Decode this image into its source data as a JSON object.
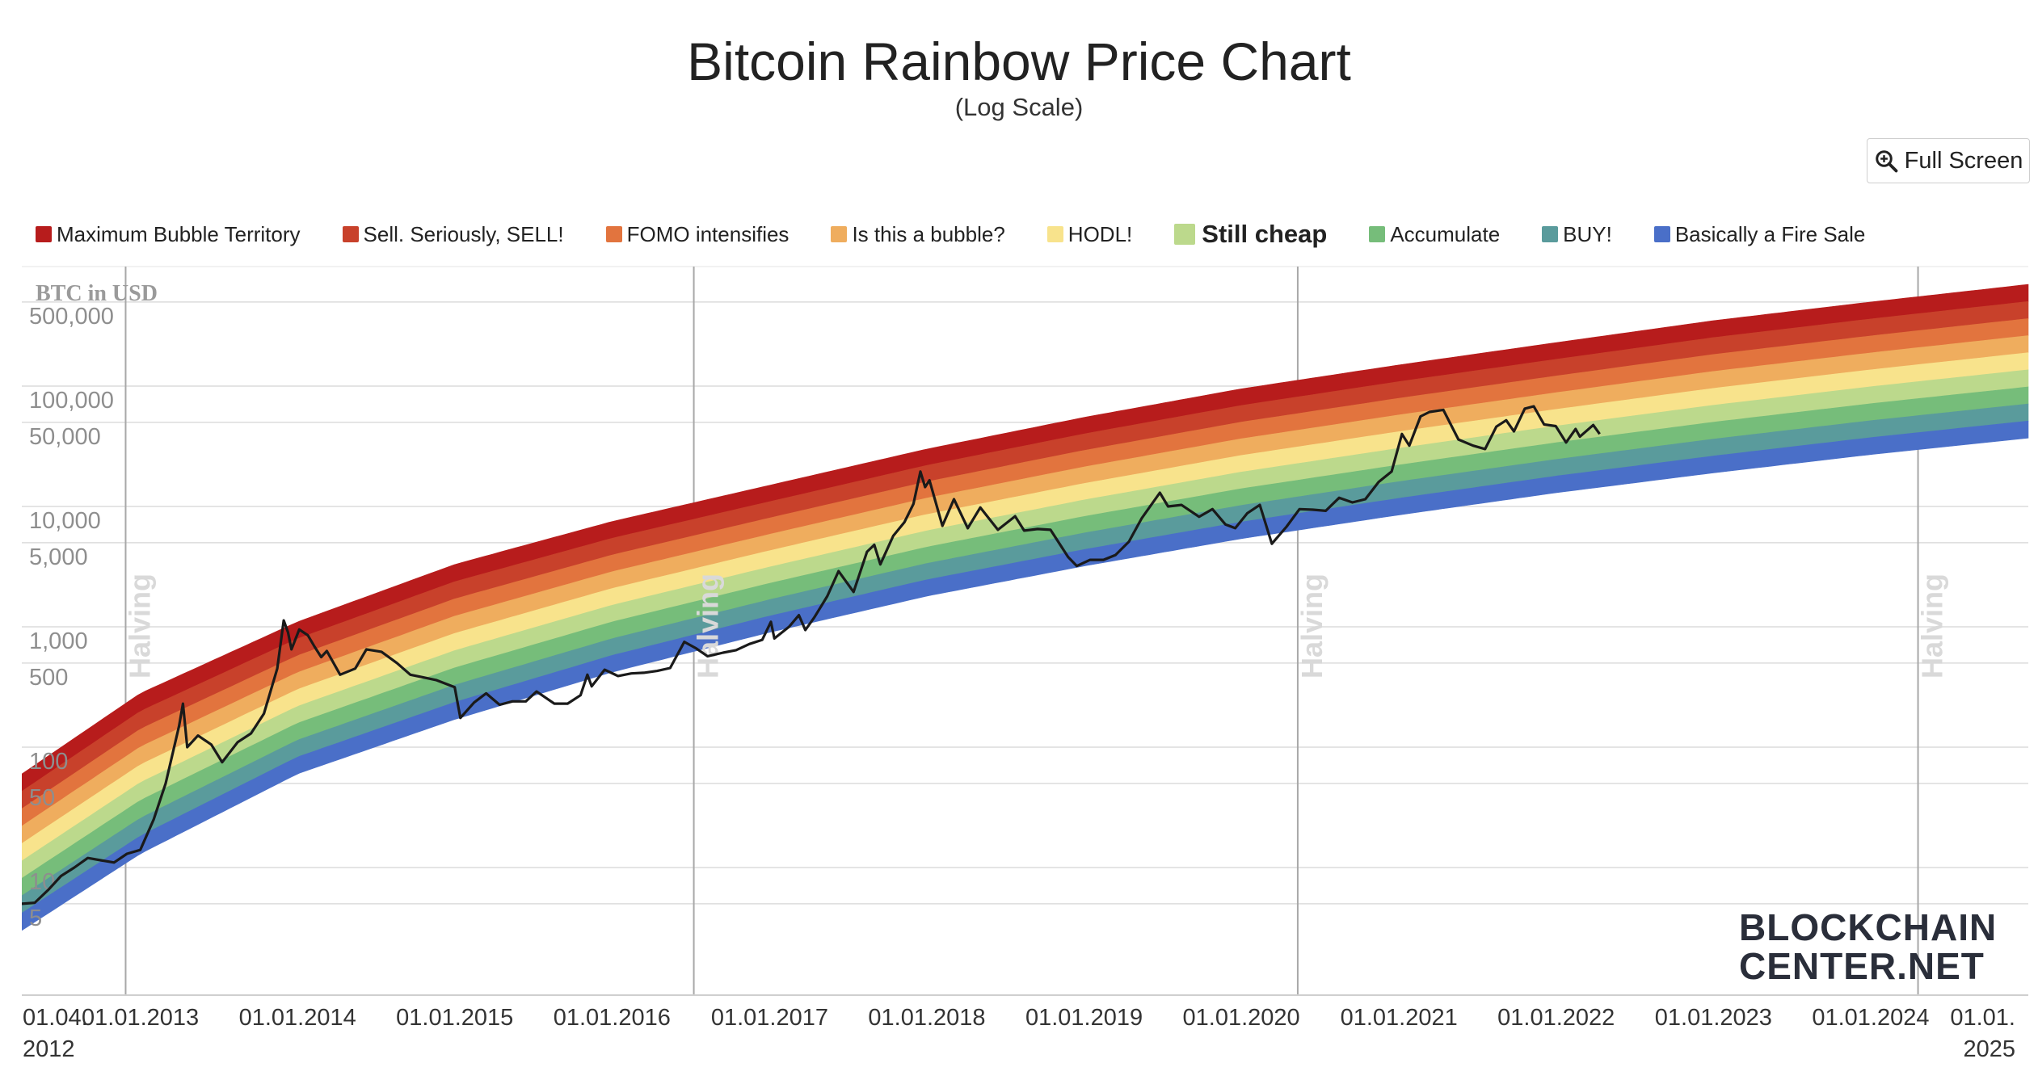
{
  "chart_data": {
    "type": "line",
    "title": "Bitcoin Rainbow Price Chart",
    "subtitle": "(Log Scale)",
    "ylabel": "BTC in USD",
    "y_scale": "log",
    "ylim": [
      2,
      1000000
    ],
    "xlim": [
      "2012-04-01",
      "2025-01-01"
    ],
    "y_ticks": [
      {
        "value": 5,
        "label": "5"
      },
      {
        "value": 10,
        "label": "10"
      },
      {
        "value": 50,
        "label": "50"
      },
      {
        "value": 100,
        "label": "100"
      },
      {
        "value": 500,
        "label": "500"
      },
      {
        "value": 1000,
        "label": "1,000"
      },
      {
        "value": 5000,
        "label": "5,000"
      },
      {
        "value": 10000,
        "label": "10,000"
      },
      {
        "value": 50000,
        "label": "50,000"
      },
      {
        "value": 100000,
        "label": "100,000"
      },
      {
        "value": 500000,
        "label": "500,000"
      }
    ],
    "x_ticks": [
      {
        "date": "2012-04-01",
        "label": [
          "01.04.",
          "2012"
        ]
      },
      {
        "date": "2013-01-01",
        "label": [
          "01.01.2013"
        ]
      },
      {
        "date": "2014-01-01",
        "label": [
          "01.01.2014"
        ]
      },
      {
        "date": "2015-01-01",
        "label": [
          "01.01.2015"
        ]
      },
      {
        "date": "2016-01-01",
        "label": [
          "01.01.2016"
        ]
      },
      {
        "date": "2017-01-01",
        "label": [
          "01.01.2017"
        ]
      },
      {
        "date": "2018-01-01",
        "label": [
          "01.01.2018"
        ]
      },
      {
        "date": "2019-01-01",
        "label": [
          "01.01.2019"
        ]
      },
      {
        "date": "2020-01-01",
        "label": [
          "01.01.2020"
        ]
      },
      {
        "date": "2021-01-01",
        "label": [
          "01.01.2021"
        ]
      },
      {
        "date": "2022-01-01",
        "label": [
          "01.01.2022"
        ]
      },
      {
        "date": "2023-01-01",
        "label": [
          "01.01.2023"
        ]
      },
      {
        "date": "2024-01-01",
        "label": [
          "01.01.2024"
        ]
      },
      {
        "date": "2025-01-01",
        "label": [
          "01.01.",
          "2025"
        ]
      }
    ],
    "halvings": [
      {
        "date": "2012-11-28",
        "label": "Halving"
      },
      {
        "date": "2016-07-09",
        "label": "Halving"
      },
      {
        "date": "2020-05-11",
        "label": "Halving"
      },
      {
        "date": "2024-04-20",
        "label": "Halving"
      }
    ],
    "bands": [
      {
        "name": "Maximum Bubble Territory",
        "color": "#b71c1c"
      },
      {
        "name": "Sell. Seriously, SELL!",
        "color": "#c8412b"
      },
      {
        "name": "FOMO intensifies",
        "color": "#e2743e"
      },
      {
        "name": "Is this a bubble?",
        "color": "#efad5e"
      },
      {
        "name": "HODL!",
        "color": "#f8e38c"
      },
      {
        "name": "Still cheap",
        "color": "#bcd98c"
      },
      {
        "name": "Accumulate",
        "color": "#76bd7a"
      },
      {
        "name": "BUY!",
        "color": "#5a9b9c"
      },
      {
        "name": "Basically a Fire Sale",
        "color": "#4a6fc8"
      }
    ],
    "bands_bottom_curve": [
      {
        "date": "2012-04-01",
        "value": 3
      },
      {
        "date": "2013-01-01",
        "value": 13
      },
      {
        "date": "2014-01-01",
        "value": 60
      },
      {
        "date": "2015-01-01",
        "value": 170
      },
      {
        "date": "2016-01-01",
        "value": 420
      },
      {
        "date": "2017-01-01",
        "value": 900
      },
      {
        "date": "2018-01-01",
        "value": 1800
      },
      {
        "date": "2019-01-01",
        "value": 3200
      },
      {
        "date": "2020-01-01",
        "value": 5400
      },
      {
        "date": "2021-01-01",
        "value": 8500
      },
      {
        "date": "2022-01-01",
        "value": 13000
      },
      {
        "date": "2023-01-01",
        "value": 19000
      },
      {
        "date": "2024-01-01",
        "value": 27000
      },
      {
        "date": "2025-01-01",
        "value": 37000
      }
    ],
    "bands_top_curve": [
      {
        "date": "2012-04-01",
        "value": 60
      },
      {
        "date": "2013-01-01",
        "value": 280
      },
      {
        "date": "2014-01-01",
        "value": 1100
      },
      {
        "date": "2015-01-01",
        "value": 3300
      },
      {
        "date": "2016-01-01",
        "value": 7500
      },
      {
        "date": "2017-01-01",
        "value": 15000
      },
      {
        "date": "2018-01-01",
        "value": 30000
      },
      {
        "date": "2019-01-01",
        "value": 55000
      },
      {
        "date": "2020-01-01",
        "value": 95000
      },
      {
        "date": "2021-01-01",
        "value": 150000
      },
      {
        "date": "2022-01-01",
        "value": 230000
      },
      {
        "date": "2023-01-01",
        "value": 350000
      },
      {
        "date": "2024-01-01",
        "value": 500000
      },
      {
        "date": "2025-01-01",
        "value": 700000
      }
    ],
    "series": [
      {
        "color": "#1a1a1a",
        "points": [
          [
            "2012-04-01",
            5
          ],
          [
            "2012-05-01",
            5.1
          ],
          [
            "2012-06-01",
            6.5
          ],
          [
            "2012-07-01",
            8.5
          ],
          [
            "2012-08-01",
            10
          ],
          [
            "2012-09-01",
            12
          ],
          [
            "2012-10-01",
            11.5
          ],
          [
            "2012-11-01",
            11
          ],
          [
            "2012-12-01",
            13
          ],
          [
            "2013-01-01",
            14
          ],
          [
            "2013-02-01",
            25
          ],
          [
            "2013-03-01",
            50
          ],
          [
            "2013-04-01",
            150
          ],
          [
            "2013-04-10",
            230
          ],
          [
            "2013-04-20",
            100
          ],
          [
            "2013-05-15",
            125
          ],
          [
            "2013-06-15",
            105
          ],
          [
            "2013-07-10",
            75
          ],
          [
            "2013-08-15",
            110
          ],
          [
            "2013-09-15",
            130
          ],
          [
            "2013-10-15",
            190
          ],
          [
            "2013-11-15",
            450
          ],
          [
            "2013-11-30",
            1130
          ],
          [
            "2013-12-10",
            900
          ],
          [
            "2013-12-18",
            650
          ],
          [
            "2014-01-05",
            950
          ],
          [
            "2014-01-25",
            850
          ],
          [
            "2014-02-10",
            680
          ],
          [
            "2014-02-25",
            560
          ],
          [
            "2014-03-10",
            630
          ],
          [
            "2014-04-10",
            400
          ],
          [
            "2014-05-15",
            450
          ],
          [
            "2014-06-10",
            650
          ],
          [
            "2014-07-15",
            620
          ],
          [
            "2014-08-20",
            500
          ],
          [
            "2014-09-20",
            400
          ],
          [
            "2014-10-20",
            380
          ],
          [
            "2014-11-20",
            360
          ],
          [
            "2015-01-01",
            315
          ],
          [
            "2015-01-14",
            175
          ],
          [
            "2015-02-15",
            235
          ],
          [
            "2015-03-15",
            280
          ],
          [
            "2015-04-15",
            225
          ],
          [
            "2015-05-15",
            240
          ],
          [
            "2015-06-15",
            240
          ],
          [
            "2015-07-10",
            290
          ],
          [
            "2015-08-20",
            230
          ],
          [
            "2015-09-20",
            230
          ],
          [
            "2015-10-20",
            270
          ],
          [
            "2015-11-05",
            400
          ],
          [
            "2015-11-15",
            320
          ],
          [
            "2015-12-15",
            440
          ],
          [
            "2016-01-15",
            390
          ],
          [
            "2016-02-15",
            410
          ],
          [
            "2016-03-15",
            415
          ],
          [
            "2016-04-15",
            430
          ],
          [
            "2016-05-15",
            455
          ],
          [
            "2016-06-17",
            750
          ],
          [
            "2016-07-15",
            660
          ],
          [
            "2016-08-10",
            570
          ],
          [
            "2016-09-15",
            610
          ],
          [
            "2016-10-15",
            640
          ],
          [
            "2016-11-15",
            720
          ],
          [
            "2016-12-15",
            780
          ],
          [
            "2017-01-04",
            1100
          ],
          [
            "2017-01-12",
            800
          ],
          [
            "2017-02-15",
            1000
          ],
          [
            "2017-03-10",
            1250
          ],
          [
            "2017-03-25",
            940
          ],
          [
            "2017-04-15",
            1200
          ],
          [
            "2017-05-15",
            1800
          ],
          [
            "2017-06-10",
            2900
          ],
          [
            "2017-07-15",
            1950
          ],
          [
            "2017-08-15",
            4200
          ],
          [
            "2017-09-01",
            4800
          ],
          [
            "2017-09-15",
            3300
          ],
          [
            "2017-10-15",
            5700
          ],
          [
            "2017-11-10",
            7400
          ],
          [
            "2017-12-01",
            10500
          ],
          [
            "2017-12-17",
            19500
          ],
          [
            "2017-12-28",
            14500
          ],
          [
            "2018-01-07",
            16500
          ],
          [
            "2018-02-06",
            6900
          ],
          [
            "2018-03-05",
            11500
          ],
          [
            "2018-04-06",
            6600
          ],
          [
            "2018-05-05",
            9800
          ],
          [
            "2018-06-15",
            6400
          ],
          [
            "2018-07-25",
            8300
          ],
          [
            "2018-08-15",
            6300
          ],
          [
            "2018-09-15",
            6500
          ],
          [
            "2018-10-15",
            6400
          ],
          [
            "2018-11-25",
            3800
          ],
          [
            "2018-12-15",
            3200
          ],
          [
            "2019-01-15",
            3600
          ],
          [
            "2019-02-15",
            3600
          ],
          [
            "2019-03-15",
            3950
          ],
          [
            "2019-04-15",
            5100
          ],
          [
            "2019-05-15",
            8000
          ],
          [
            "2019-06-26",
            13000
          ],
          [
            "2019-07-15",
            10000
          ],
          [
            "2019-08-15",
            10300
          ],
          [
            "2019-09-25",
            8200
          ],
          [
            "2019-10-26",
            9500
          ],
          [
            "2019-11-25",
            7100
          ],
          [
            "2019-12-18",
            6600
          ],
          [
            "2020-01-15",
            8800
          ],
          [
            "2020-02-13",
            10300
          ],
          [
            "2020-03-12",
            4900
          ],
          [
            "2020-04-15",
            6800
          ],
          [
            "2020-05-15",
            9500
          ],
          [
            "2020-06-15",
            9400
          ],
          [
            "2020-07-15",
            9200
          ],
          [
            "2020-08-15",
            11800
          ],
          [
            "2020-09-15",
            10800
          ],
          [
            "2020-10-15",
            11500
          ],
          [
            "2020-11-15",
            16000
          ],
          [
            "2020-12-15",
            19500
          ],
          [
            "2021-01-08",
            40000
          ],
          [
            "2021-01-25",
            32000
          ],
          [
            "2021-02-20",
            56000
          ],
          [
            "2021-03-13",
            61000
          ],
          [
            "2021-04-14",
            63500
          ],
          [
            "2021-05-19",
            36000
          ],
          [
            "2021-06-22",
            32000
          ],
          [
            "2021-07-20",
            30000
          ],
          [
            "2021-08-15",
            46000
          ],
          [
            "2021-09-07",
            52000
          ],
          [
            "2021-09-25",
            42000
          ],
          [
            "2021-10-20",
            65000
          ],
          [
            "2021-11-10",
            68000
          ],
          [
            "2021-12-04",
            48000
          ],
          [
            "2021-12-31",
            46500
          ],
          [
            "2022-01-24",
            34000
          ],
          [
            "2022-02-15",
            44000
          ],
          [
            "2022-02-25",
            38000
          ],
          [
            "2022-03-28",
            47500
          ],
          [
            "2022-04-12",
            40000
          ]
        ]
      }
    ]
  },
  "ui": {
    "full_screen_label": "Full Screen",
    "full_screen_icon": "zoom-in-icon",
    "watermark_line1": "BLOCKCHAIN",
    "watermark_line2": "CENTER.NET"
  }
}
